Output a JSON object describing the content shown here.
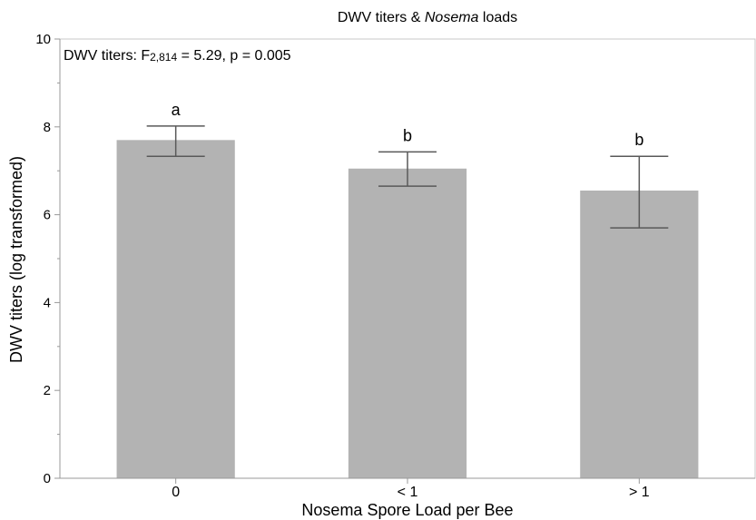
{
  "chart_data": {
    "type": "bar",
    "title": {
      "prefix": "DWV titers & ",
      "italic": "Nosema",
      "suffix": " loads"
    },
    "xlabel": "Nosema Spore Load per Bee",
    "ylabel": "DWV titers (log transformed)",
    "categories": [
      "0",
      "< 1",
      "> 1"
    ],
    "values": [
      7.7,
      7.05,
      6.55
    ],
    "error_low": [
      7.33,
      6.65,
      5.7
    ],
    "error_high": [
      8.02,
      7.43,
      7.33
    ],
    "significance_letters": [
      "a",
      "b",
      "b"
    ],
    "ylim": [
      0,
      10
    ],
    "yticks": [
      0,
      2,
      4,
      6,
      8,
      10
    ],
    "annotation": {
      "prefix": "DWV titers: F",
      "subscript": "2,814",
      "suffix": " = 5.29, p = 0.005"
    },
    "grid": false,
    "bar_color": "#b3b3b3",
    "errorbar_color": "#595959",
    "axis_color": "#999999"
  }
}
